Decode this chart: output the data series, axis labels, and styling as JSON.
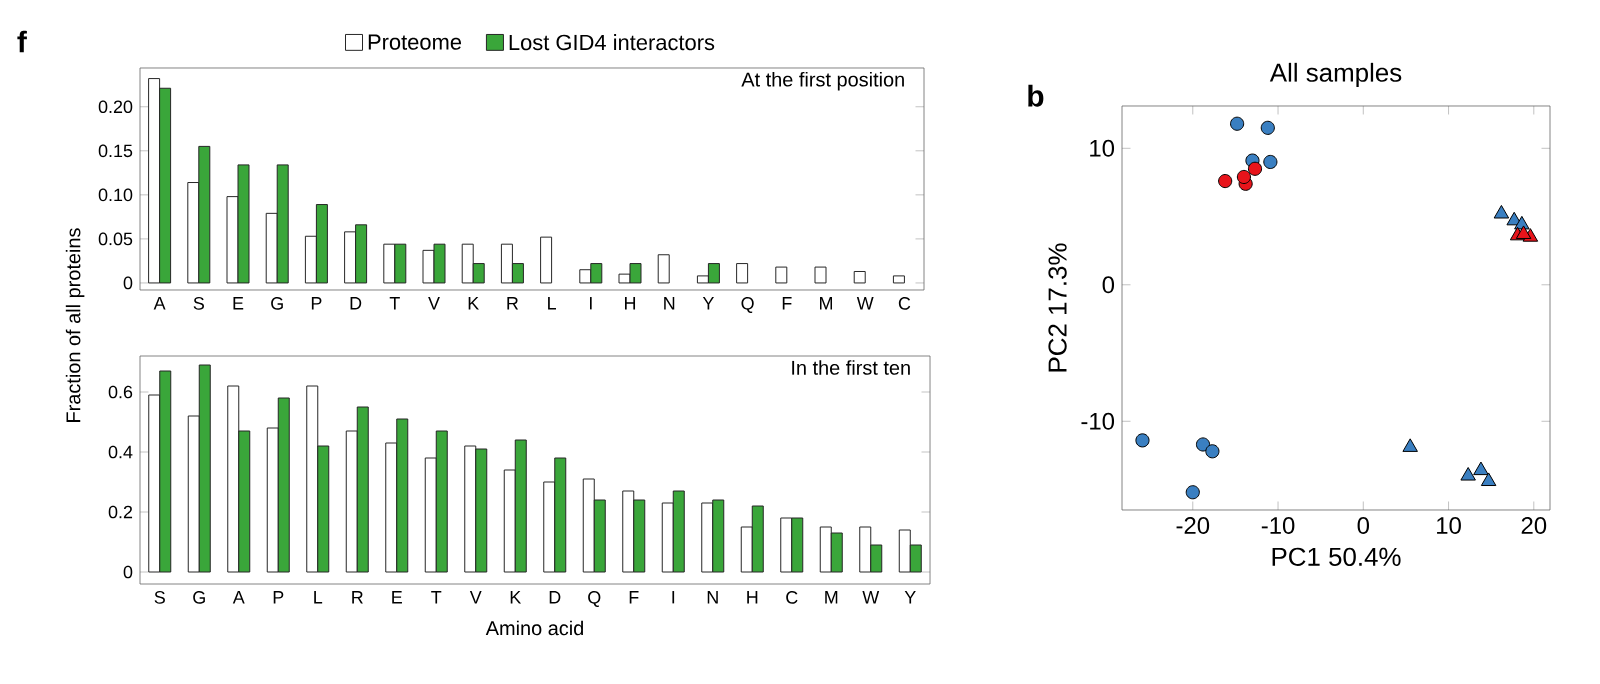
{
  "chart_data": [
    {
      "type": "bar",
      "title": "At the first position",
      "ylabel": "Fraction of all proteins",
      "annotations": [
        "f"
      ],
      "legend": "top",
      "categories": [
        "A",
        "S",
        "E",
        "G",
        "P",
        "D",
        "T",
        "V",
        "K",
        "R",
        "L",
        "I",
        "H",
        "N",
        "Y",
        "Q",
        "F",
        "M",
        "W",
        "C"
      ],
      "series": [
        {
          "name": "Proteome",
          "color": "#ffffff",
          "values": [
            0.232,
            0.114,
            0.098,
            0.079,
            0.053,
            0.058,
            0.044,
            0.037,
            0.044,
            0.044,
            0.052,
            0.015,
            0.01,
            0.032,
            0.008,
            0.022,
            0.018,
            0.018,
            0.013,
            0.008
          ]
        },
        {
          "name": "Lost GID4 interactors",
          "color": "#3aa63a",
          "values": [
            0.221,
            0.155,
            0.134,
            0.134,
            0.089,
            0.066,
            0.044,
            0.044,
            0.022,
            0.022,
            0,
            0.022,
            0.022,
            0,
            0.022,
            0,
            0,
            0,
            0,
            0
          ]
        }
      ],
      "ylim": [
        -0.008,
        0.244
      ],
      "yticks": [
        0,
        0.05,
        {
          "value": 0.1,
          "label": "0.10"
        },
        {
          "value": 0.15,
          "label": "0.15"
        },
        {
          "value": 0.2,
          "label": "0.20"
        }
      ]
    },
    {
      "type": "bar",
      "title": "In the first ten",
      "xlabel": "Amino acid",
      "categories": [
        "S",
        "G",
        "A",
        "P",
        "L",
        "R",
        "E",
        "T",
        "V",
        "K",
        "D",
        "Q",
        "F",
        "I",
        "N",
        "H",
        "C",
        "M",
        "W",
        "Y"
      ],
      "series": [
        {
          "color": "#ffffff",
          "values": [
            0.59,
            0.52,
            0.62,
            0.48,
            0.62,
            0.47,
            0.43,
            0.38,
            0.42,
            0.34,
            0.3,
            0.31,
            0.27,
            0.23,
            0.23,
            0.15,
            0.18,
            0.15,
            0.15,
            0.14
          ]
        },
        {
          "color": "#3aa63a",
          "values": [
            0.67,
            0.69,
            0.47,
            0.58,
            0.42,
            0.55,
            0.51,
            0.47,
            0.41,
            0.44,
            0.38,
            0.24,
            0.24,
            0.27,
            0.24,
            0.22,
            0.18,
            0.13,
            0.09,
            0.09
          ]
        }
      ],
      "ylim": [
        -0.04,
        0.72
      ],
      "yticks": [
        0,
        0.2,
        0.4,
        0.6
      ]
    },
    {
      "type": "scatter",
      "title": "All samples",
      "xlabel": "PC1 50.4%",
      "ylabel": "PC2 17.3%",
      "annotations": [
        "b"
      ],
      "series": [
        {
          "color": "#3a7fc1",
          "marker": "circle",
          "x": [
            -14.8,
            -11.2,
            -13.0,
            -10.9,
            -25.9,
            -18.8,
            -17.7,
            -20.0
          ],
          "values": [
            11.8,
            11.5,
            9.1,
            9.0,
            -11.4,
            -11.7,
            -12.2,
            -15.2
          ]
        },
        {
          "color": "#e8141b",
          "marker": "circle",
          "x": [
            -16.2,
            -13.8,
            -14.0,
            -12.7
          ],
          "values": [
            7.6,
            7.4,
            7.9,
            8.5
          ]
        },
        {
          "color": "#3a7fc1",
          "marker": "triangle",
          "x": [
            5.5,
            12.3,
            13.8,
            14.7,
            16.2,
            17.7,
            18.6
          ],
          "values": [
            -11.9,
            -14.0,
            -13.6,
            -14.4,
            5.2,
            4.7,
            4.4
          ]
        },
        {
          "color": "#e8141b",
          "marker": "triangle",
          "x": [
            18.1,
            19.6,
            18.8
          ],
          "values": [
            3.6,
            3.5,
            3.7
          ]
        }
      ],
      "xlim": [
        -28.3,
        21.9
      ],
      "ylim": [
        -16.5,
        13.1
      ],
      "xticks": [
        -20,
        -10,
        0,
        10,
        20
      ],
      "yticks": [
        -10,
        0,
        10
      ]
    }
  ]
}
